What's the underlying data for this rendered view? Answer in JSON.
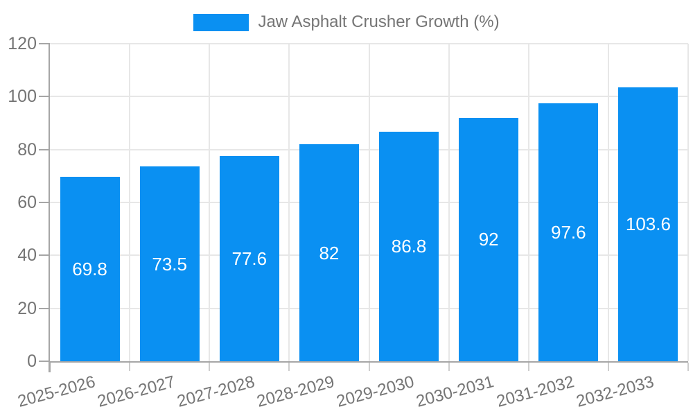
{
  "chart_data": {
    "type": "bar",
    "title": "Jaw Asphalt Crusher Growth (%)",
    "legend": {
      "label": "Jaw Asphalt Crusher Growth (%)",
      "position": "top-center"
    },
    "categories": [
      "2025-2026",
      "2026-2027",
      "2027-2028",
      "2028-2029",
      "2029-2030",
      "2030-2031",
      "2031-2032",
      "2032-2033"
    ],
    "series": [
      {
        "name": "Jaw Asphalt Crusher Growth (%)",
        "values": [
          69.8,
          73.5,
          77.6,
          82,
          86.8,
          92,
          97.6,
          103.6
        ]
      }
    ],
    "value_labels": [
      "69.8",
      "73.5",
      "77.6",
      "82",
      "86.8",
      "92",
      "97.6",
      "103.6"
    ],
    "xlabel": "",
    "ylabel": "",
    "ylim": [
      0,
      120
    ],
    "yticks": [
      0,
      20,
      40,
      60,
      80,
      100,
      120
    ],
    "grid": true,
    "colors": {
      "bar": "#0A90F2",
      "value_label": "#ffffff",
      "axis_text": "#757575",
      "grid_line": "#e7e7e7",
      "axis_line": "#a6a6a6",
      "background": "#ffffff"
    }
  }
}
